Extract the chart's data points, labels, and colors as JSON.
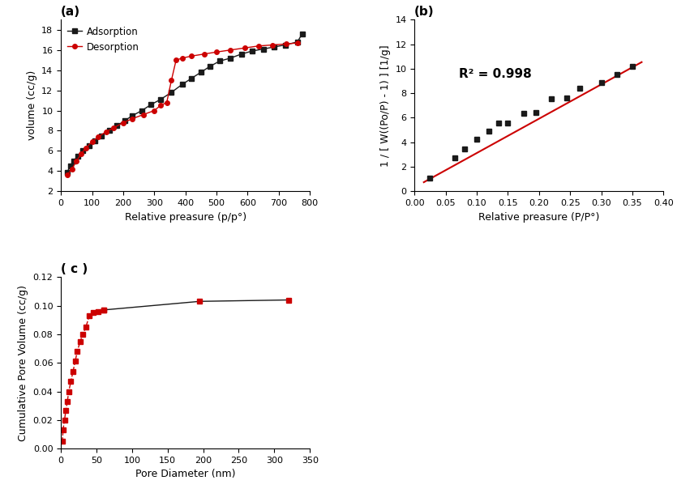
{
  "panel_a": {
    "title": "(a)",
    "xlabel": "Relative preasure (p/p°)",
    "ylabel": "volume (cc/g)",
    "adsorption_x": [
      20,
      30,
      40,
      55,
      70,
      90,
      110,
      130,
      155,
      180,
      205,
      230,
      260,
      290,
      320,
      355,
      390,
      420,
      450,
      480,
      510,
      545,
      580,
      615,
      650,
      685,
      720,
      760,
      775
    ],
    "adsorption_y": [
      3.9,
      4.5,
      5.0,
      5.5,
      6.0,
      6.5,
      7.0,
      7.5,
      8.0,
      8.5,
      9.0,
      9.5,
      10.0,
      10.6,
      11.1,
      11.8,
      12.6,
      13.2,
      13.8,
      14.4,
      14.9,
      15.2,
      15.6,
      15.9,
      16.1,
      16.3,
      16.5,
      16.8,
      17.6
    ],
    "desorption_x": [
      20,
      35,
      50,
      65,
      80,
      100,
      120,
      145,
      170,
      200,
      230,
      265,
      300,
      320,
      340,
      355,
      370,
      390,
      420,
      460,
      500,
      545,
      590,
      635,
      680,
      725,
      760
    ],
    "desorption_y": [
      3.6,
      4.2,
      5.0,
      5.7,
      6.3,
      6.9,
      7.4,
      7.9,
      8.3,
      8.8,
      9.2,
      9.6,
      10.0,
      10.5,
      10.8,
      13.0,
      15.0,
      15.2,
      15.4,
      15.6,
      15.8,
      16.0,
      16.2,
      16.4,
      16.5,
      16.6,
      16.7
    ],
    "xlim": [
      0,
      800
    ],
    "ylim": [
      2,
      19
    ],
    "xticks": [
      0,
      100,
      200,
      300,
      400,
      500,
      600,
      700,
      800
    ],
    "yticks": [
      2,
      4,
      6,
      8,
      10,
      12,
      14,
      16,
      18
    ],
    "adsorption_color": "#1a1a1a",
    "desorption_color": "#cc0000",
    "legend_adsorption": "Adsorption",
    "legend_desorption": "Desorption"
  },
  "panel_b": {
    "title": "(b)",
    "xlabel": "Relative preasure (P/P°)",
    "ylabel": "1 / [ W((Po/P) - 1) ] [1/g]",
    "x_data": [
      0.025,
      0.065,
      0.08,
      0.1,
      0.12,
      0.135,
      0.15,
      0.175,
      0.195,
      0.22,
      0.245,
      0.265,
      0.3,
      0.325,
      0.35
    ],
    "y_data": [
      1.05,
      2.75,
      3.45,
      4.25,
      4.9,
      5.55,
      5.58,
      6.38,
      6.42,
      7.55,
      7.62,
      8.38,
      8.88,
      9.52,
      10.2
    ],
    "fit_x_start": 0.015,
    "fit_x_end": 0.365,
    "fit_slope": 28.0,
    "fit_intercept": 0.32,
    "xlim": [
      0.0,
      0.4
    ],
    "ylim": [
      0,
      14
    ],
    "xticks": [
      0.0,
      0.05,
      0.1,
      0.15,
      0.2,
      0.25,
      0.3,
      0.35,
      0.4
    ],
    "yticks": [
      0,
      2,
      4,
      6,
      8,
      10,
      12,
      14
    ],
    "r_squared": "R² = 0.998",
    "data_color": "#1a1a1a",
    "fit_color": "#cc0000"
  },
  "panel_c": {
    "title": "( c )",
    "xlabel": "Pore Diameter (nm)",
    "ylabel": "Cumulative Pore Volume (cc/g)",
    "x_data": [
      2,
      3,
      5,
      7,
      9,
      11,
      14,
      17,
      20,
      23,
      27,
      31,
      35,
      40,
      45,
      52,
      60,
      195,
      320
    ],
    "y_data": [
      0.005,
      0.013,
      0.02,
      0.027,
      0.033,
      0.04,
      0.047,
      0.054,
      0.061,
      0.068,
      0.075,
      0.08,
      0.085,
      0.093,
      0.095,
      0.096,
      0.097,
      0.103,
      0.104
    ],
    "dashed_threshold_x": 60,
    "xlim": [
      0,
      350
    ],
    "ylim": [
      0.0,
      0.12
    ],
    "xticks": [
      0,
      50,
      100,
      150,
      200,
      250,
      300,
      350
    ],
    "yticks": [
      0.0,
      0.02,
      0.04,
      0.06,
      0.08,
      0.1,
      0.12
    ],
    "line_color": "#1a1a1a",
    "marker_color": "#cc0000"
  }
}
